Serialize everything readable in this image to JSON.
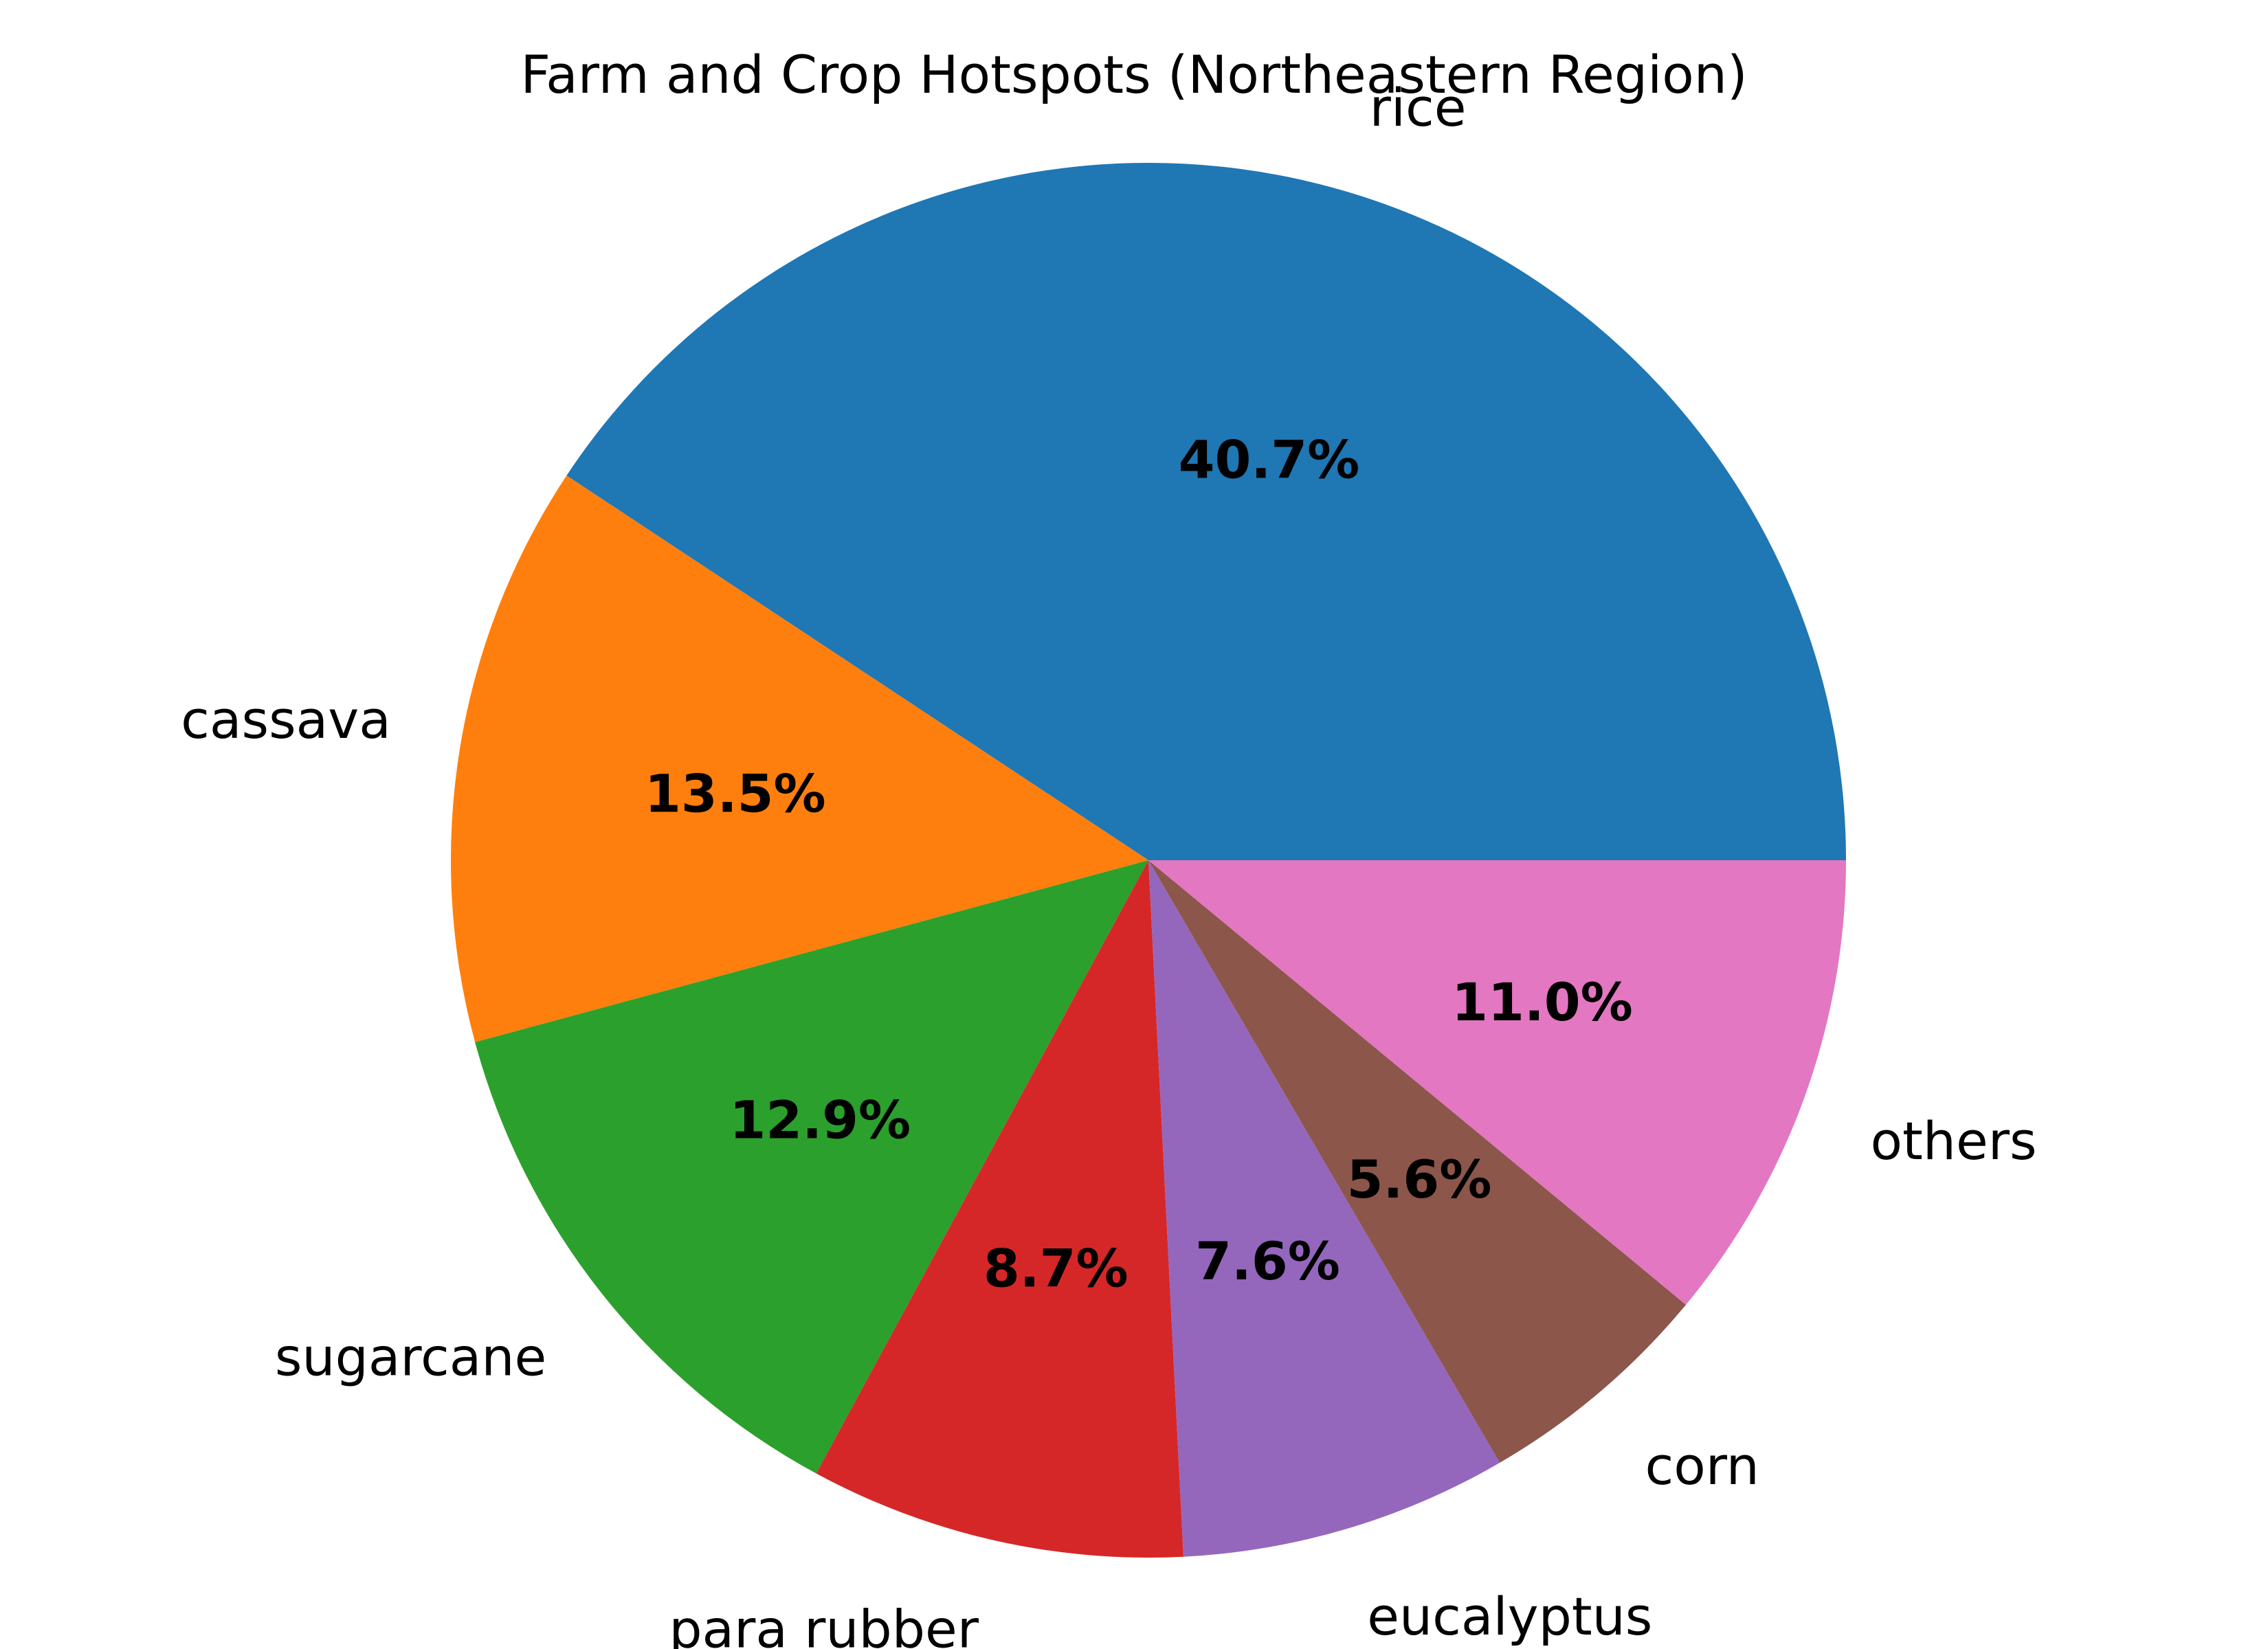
{
  "chart_data": {
    "type": "pie",
    "title": "Farm and Crop Hotspots (Northeastern Region)",
    "start_angle_deg": 0,
    "direction": "counterclockwise",
    "slices": [
      {
        "label": "rice",
        "value": 40.7,
        "pct_text": "40.7%",
        "color": "#1f77b4"
      },
      {
        "label": "cassava",
        "value": 13.5,
        "pct_text": "13.5%",
        "color": "#ff7f0e"
      },
      {
        "label": "sugarcane",
        "value": 12.9,
        "pct_text": "12.9%",
        "color": "#2ca02c"
      },
      {
        "label": "para rubber",
        "value": 8.7,
        "pct_text": "8.7%",
        "color": "#d62728"
      },
      {
        "label": "eucalyptus",
        "value": 7.6,
        "pct_text": "7.6%",
        "color": "#9467bd"
      },
      {
        "label": "corn",
        "value": 5.6,
        "pct_text": "5.6%",
        "color": "#8c564b"
      },
      {
        "label": "others",
        "value": 11.0,
        "pct_text": "11.0%",
        "color": "#e377c2"
      }
    ]
  }
}
